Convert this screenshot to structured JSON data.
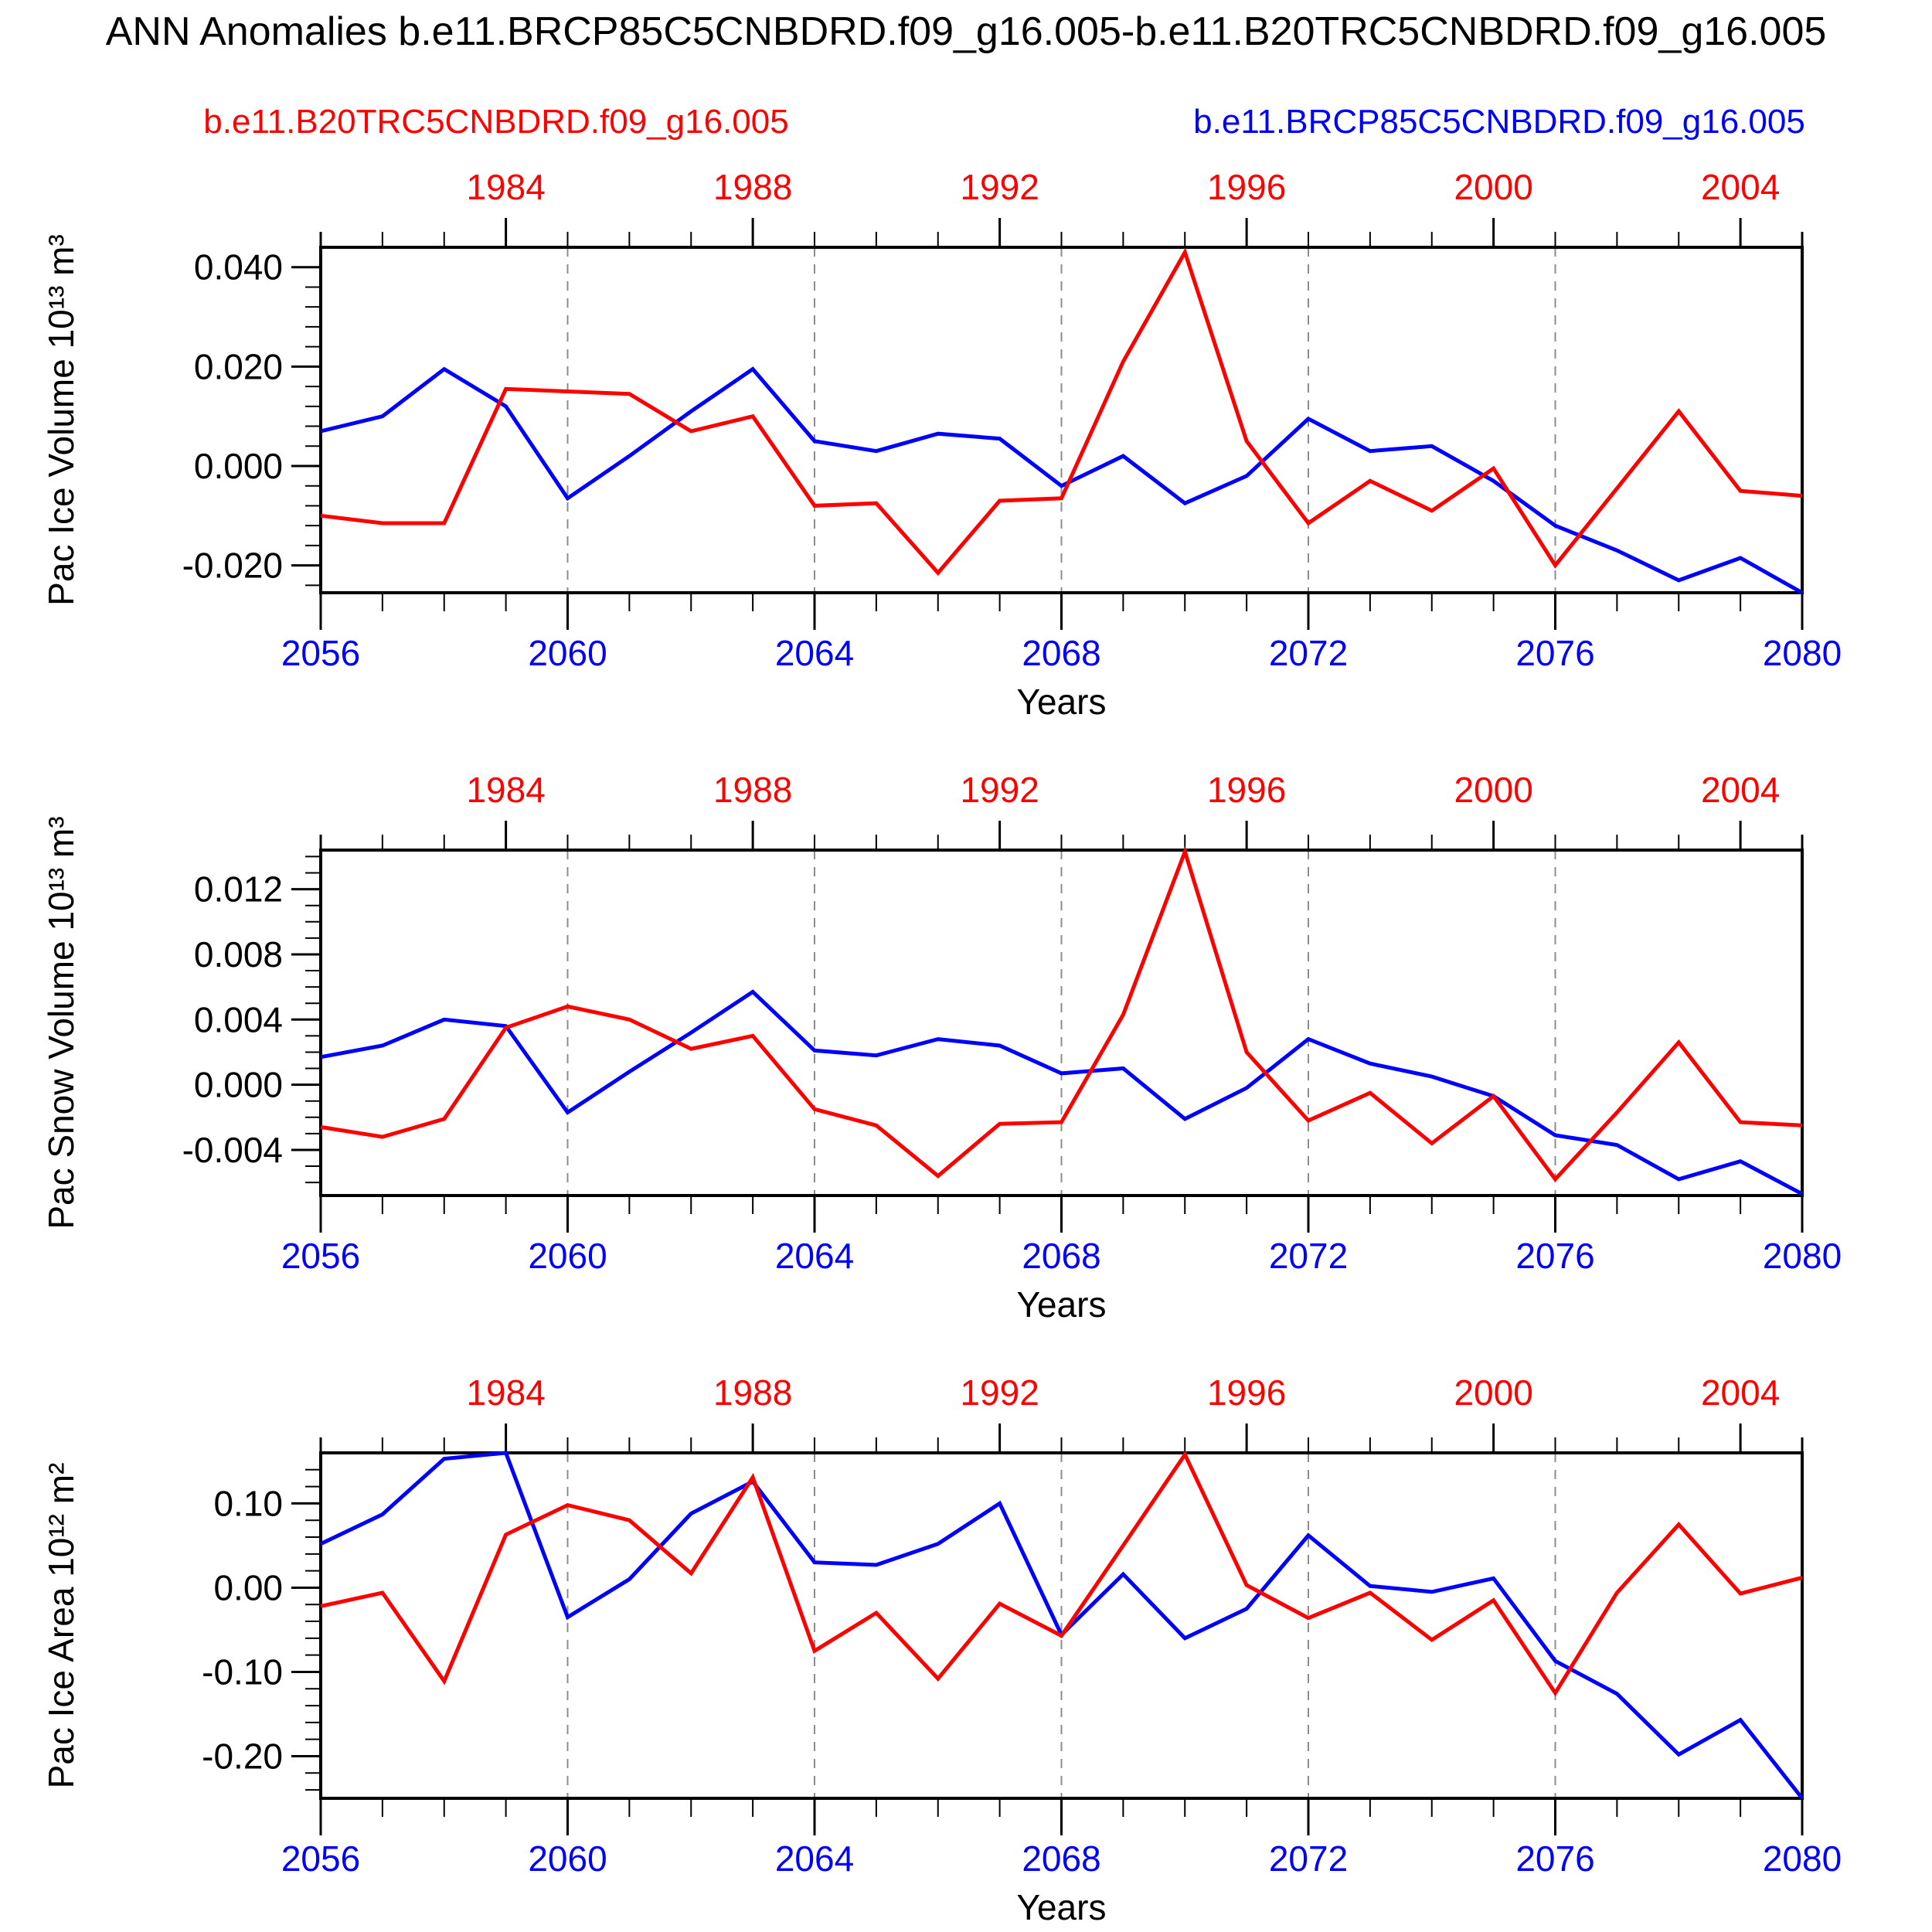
{
  "title": "ANN Anomalies b.e11.BRCP85C5CNBDRD.f09_g16.005-b.e11.B20TRC5CNBDRD.f09_g16.005",
  "legend": {
    "red_label": "b.e11.B20TRC5CNBDRD.f09_g16.005",
    "blue_label": "b.e11.BRCP85C5CNBDRD.f09_g16.005"
  },
  "colors": {
    "red": "#ff0000",
    "blue": "#0000ff",
    "grid_dash": "#8c8c8c",
    "axis": "#000000"
  },
  "x_axis": {
    "label": "Years",
    "years": [
      2056,
      2057,
      2058,
      2059,
      2060,
      2061,
      2062,
      2063,
      2064,
      2065,
      2066,
      2067,
      2068,
      2069,
      2070,
      2071,
      2072,
      2073,
      2074,
      2075,
      2076,
      2077,
      2078,
      2079,
      2080
    ],
    "bottom_tick_labels": [
      "2056",
      "2060",
      "2064",
      "2068",
      "2072",
      "2076",
      "2080"
    ],
    "bottom_major_years": [
      2056,
      2060,
      2064,
      2068,
      2072,
      2076,
      2080
    ],
    "top_tick_labels": [
      "1984",
      "1988",
      "1992",
      "1996",
      "2000",
      "2004"
    ],
    "top_major_red_years": [
      1984,
      1988,
      1992,
      1996,
      2000,
      2004
    ],
    "top_axis_year_offset": 75,
    "dashed_gridline_years": [
      2060,
      2064,
      2068,
      2072,
      2076
    ]
  },
  "chart_data": [
    {
      "type": "line",
      "ylabel": "Pac Ice Volume 10¹³ m³",
      "ylim": [
        -0.0255,
        0.044
      ],
      "yticks": [
        0.04,
        0.02,
        0.0,
        -0.02
      ],
      "ytick_labels": [
        "0.040",
        "0.020",
        "0.000",
        "-0.020"
      ],
      "y_minor_step": 0.004,
      "series": [
        {
          "name": "b.e11.BRCP85C5CNBDRD.f09_g16.005",
          "color_key": "blue",
          "values": [
            0.007,
            0.01,
            0.0195,
            0.012,
            -0.0065,
            0.002,
            0.011,
            0.0195,
            0.005,
            0.003,
            0.0065,
            0.0055,
            -0.004,
            0.002,
            -0.0075,
            -0.002,
            0.0095,
            0.003,
            0.004,
            -0.003,
            -0.012,
            -0.017,
            -0.023,
            -0.0185,
            -0.0255
          ]
        },
        {
          "name": "b.e11.B20TRC5CNBDRD.f09_g16.005",
          "color_key": "red",
          "values": [
            -0.01,
            -0.0115,
            -0.0115,
            0.0155,
            0.015,
            0.0145,
            0.007,
            0.01,
            -0.008,
            -0.0075,
            -0.0215,
            -0.007,
            -0.0065,
            0.021,
            0.043,
            0.005,
            -0.0115,
            -0.003,
            -0.009,
            -0.0005,
            -0.02,
            -0.0045,
            0.011,
            -0.005,
            -0.006
          ]
        }
      ]
    },
    {
      "type": "line",
      "ylabel": "Pac Snow Volume 10¹³ m³",
      "ylim": [
        -0.0068,
        0.0144
      ],
      "yticks": [
        0.012,
        0.008,
        0.004,
        0.0,
        -0.004
      ],
      "ytick_labels": [
        "0.012",
        "0.008",
        "0.004",
        "0.000",
        "-0.004"
      ],
      "y_minor_step": 0.001,
      "series": [
        {
          "name": "b.e11.BRCP85C5CNBDRD.f09_g16.005",
          "color_key": "blue",
          "values": [
            0.0017,
            0.0024,
            0.004,
            0.0036,
            -0.0017,
            0.0008,
            0.0032,
            0.0057,
            0.0021,
            0.0018,
            0.0028,
            0.0024,
            0.0007,
            0.001,
            -0.0021,
            -0.0002,
            0.0028,
            0.0013,
            0.0005,
            -0.0007,
            -0.0031,
            -0.0037,
            -0.0058,
            -0.0047,
            -0.0067
          ]
        },
        {
          "name": "b.e11.B20TRC5CNBDRD.f09_g16.005",
          "color_key": "red",
          "values": [
            -0.0026,
            -0.0032,
            -0.0021,
            0.0035,
            0.0048,
            0.004,
            0.0022,
            0.003,
            -0.0015,
            -0.0025,
            -0.0056,
            -0.0024,
            -0.0023,
            0.0043,
            0.0143,
            0.002,
            -0.0022,
            -0.0005,
            -0.0036,
            -0.0007,
            -0.0058,
            -0.0017,
            0.0026,
            -0.0023,
            -0.0025
          ]
        }
      ]
    },
    {
      "type": "line",
      "ylabel": "Pac Ice Area 10¹² m²",
      "ylim": [
        -0.25,
        0.16
      ],
      "yticks": [
        0.1,
        0.0,
        -0.1,
        -0.2
      ],
      "ytick_labels": [
        "0.10",
        "0.00",
        "-0.10",
        "-0.20"
      ],
      "y_minor_step": 0.02,
      "series": [
        {
          "name": "b.e11.BRCP85C5CNBDRD.f09_g16.005",
          "color_key": "blue",
          "values": [
            0.052,
            0.087,
            0.153,
            0.16,
            -0.035,
            0.01,
            0.088,
            0.126,
            0.03,
            0.027,
            0.052,
            0.1,
            -0.056,
            0.016,
            -0.06,
            -0.025,
            0.062,
            0.002,
            -0.005,
            0.011,
            -0.087,
            -0.126,
            -0.198,
            -0.157,
            -0.25
          ]
        },
        {
          "name": "b.e11.B20TRC5CNBDRD.f09_g16.005",
          "color_key": "red",
          "values": [
            -0.022,
            -0.006,
            -0.111,
            0.063,
            0.098,
            0.08,
            0.017,
            0.131,
            -0.075,
            -0.03,
            -0.108,
            -0.019,
            -0.057,
            0.05,
            0.158,
            0.003,
            -0.036,
            -0.006,
            -0.062,
            -0.015,
            -0.125,
            -0.006,
            0.075,
            -0.007,
            0.012
          ]
        }
      ]
    }
  ]
}
